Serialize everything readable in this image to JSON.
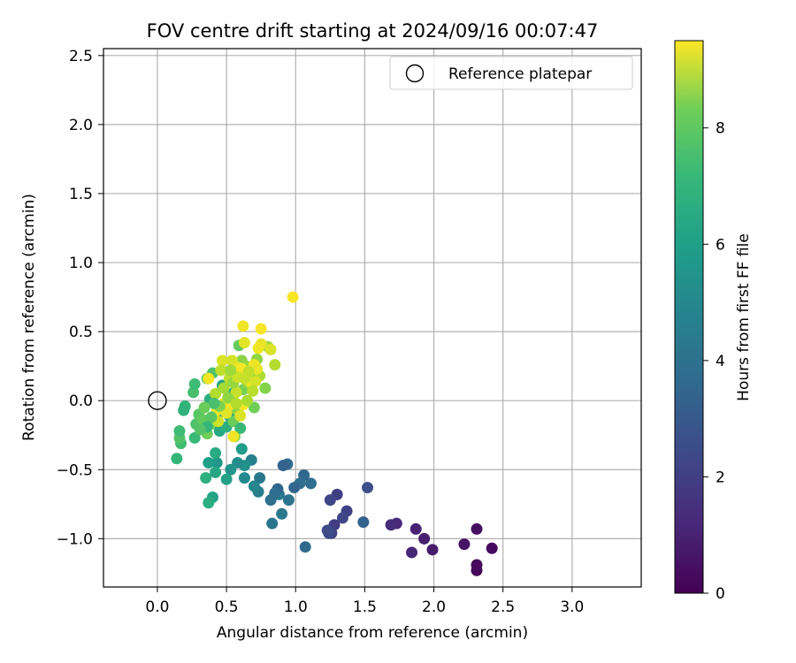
{
  "chart_data": {
    "type": "scatter",
    "title": "FOV centre drift starting at 2024/09/16 00:07:47",
    "xlabel": "Angular distance from reference (arcmin)",
    "ylabel": "Rotation from reference (arcmin)",
    "xlim": [
      -0.39,
      3.5
    ],
    "ylim": [
      -1.35,
      2.55
    ],
    "xticks": [
      0.0,
      0.5,
      1.0,
      1.5,
      2.0,
      2.5,
      3.0
    ],
    "yticks": [
      -1.0,
      -0.5,
      0.0,
      0.5,
      1.0,
      1.5,
      2.0,
      2.5
    ],
    "xtick_labels": [
      "0.0",
      "0.5",
      "1.0",
      "1.5",
      "2.0",
      "2.5",
      "3.0"
    ],
    "ytick_labels": [
      "−1.0",
      "−0.5",
      "0.0",
      "0.5",
      "1.0",
      "1.5",
      "2.0",
      "2.5"
    ],
    "grid": true,
    "legend": {
      "position": "top-right",
      "entries": [
        "Reference platepar"
      ]
    },
    "reference_point": {
      "x": 0.0,
      "y": 0.0
    },
    "colorbar": {
      "label": "Hours from first FF file",
      "range": [
        0,
        9.5
      ],
      "ticks": [
        0,
        2,
        4,
        6,
        8
      ],
      "tick_labels": [
        "0",
        "2",
        "4",
        "6",
        "8"
      ],
      "colormap": "viridis"
    },
    "points": [
      [
        2.31,
        -1.23,
        0.1
      ],
      [
        2.31,
        -1.19,
        0.2
      ],
      [
        2.42,
        -1.07,
        0.3
      ],
      [
        2.31,
        -0.93,
        0.4
      ],
      [
        2.22,
        -1.04,
        0.5
      ],
      [
        1.99,
        -1.08,
        0.7
      ],
      [
        1.93,
        -1.0,
        0.8
      ],
      [
        1.87,
        -0.93,
        0.9
      ],
      [
        1.84,
        -1.1,
        1.0
      ],
      [
        1.73,
        -0.89,
        1.1
      ],
      [
        1.69,
        -0.9,
        1.2
      ],
      [
        1.52,
        -0.63,
        2.3
      ],
      [
        1.49,
        -0.88,
        3.0
      ],
      [
        1.37,
        -0.8,
        1.9
      ],
      [
        1.34,
        -0.85,
        2.0
      ],
      [
        1.3,
        -0.68,
        1.8
      ],
      [
        1.28,
        -0.9,
        1.7
      ],
      [
        1.26,
        -0.96,
        1.9
      ],
      [
        1.24,
        -0.96,
        2.1
      ],
      [
        1.25,
        -0.72,
        2.0
      ],
      [
        1.23,
        -0.94,
        2.2
      ],
      [
        1.07,
        -1.06,
        3.3
      ],
      [
        1.11,
        -0.6,
        3.4
      ],
      [
        1.06,
        -0.54,
        3.2
      ],
      [
        1.03,
        -0.6,
        3.5
      ],
      [
        0.99,
        -0.63,
        3.1
      ],
      [
        0.95,
        -0.72,
        3.6
      ],
      [
        0.94,
        -0.46,
        3.3
      ],
      [
        0.91,
        -0.47,
        3.0
      ],
      [
        0.9,
        -0.82,
        3.8
      ],
      [
        0.88,
        -0.68,
        3.9
      ],
      [
        0.87,
        -0.64,
        3.1
      ],
      [
        0.85,
        -0.67,
        3.4
      ],
      [
        0.83,
        -0.89,
        3.7
      ],
      [
        0.82,
        -0.72,
        3.5
      ],
      [
        0.74,
        -0.56,
        3.8
      ],
      [
        0.73,
        -0.66,
        4.1
      ],
      [
        0.7,
        -0.62,
        4.4
      ],
      [
        0.68,
        -0.43,
        4.2
      ],
      [
        0.63,
        -0.56,
        4.5
      ],
      [
        0.63,
        -0.47,
        4.8
      ],
      [
        0.61,
        -0.35,
        5.2
      ],
      [
        0.58,
        -0.45,
        4.6
      ],
      [
        0.53,
        -0.5,
        4.9
      ],
      [
        0.5,
        -0.57,
        5.4
      ],
      [
        0.43,
        -0.45,
        5.0
      ],
      [
        0.42,
        -0.52,
        5.6
      ],
      [
        0.42,
        -0.38,
        5.8
      ],
      [
        0.4,
        -0.7,
        5.5
      ],
      [
        0.37,
        -0.74,
        5.9
      ],
      [
        0.35,
        -0.56,
        6.0
      ],
      [
        0.37,
        -0.45,
        5.3
      ],
      [
        0.14,
        -0.42,
        6.3
      ],
      [
        0.17,
        -0.31,
        6.6
      ],
      [
        0.16,
        -0.27,
        6.9
      ],
      [
        0.16,
        -0.22,
        6.5
      ],
      [
        0.27,
        -0.27,
        6.4
      ],
      [
        0.2,
        -0.04,
        6.2
      ],
      [
        0.19,
        -0.07,
        6.1
      ],
      [
        0.26,
        0.06,
        6.7
      ],
      [
        0.27,
        0.12,
        6.5
      ],
      [
        0.28,
        -0.17,
        6.8
      ],
      [
        0.3,
        -0.1,
        7.0
      ],
      [
        0.33,
        -0.14,
        7.2
      ],
      [
        0.36,
        -0.24,
        7.4
      ],
      [
        0.38,
        0.01,
        5.9
      ],
      [
        0.4,
        0.2,
        6.8
      ],
      [
        0.36,
        0.16,
        7.1
      ],
      [
        0.42,
        -0.17,
        7.5
      ],
      [
        0.45,
        -0.22,
        5.7
      ],
      [
        0.47,
        -0.08,
        5.1
      ],
      [
        0.47,
        0.11,
        5.6
      ],
      [
        0.5,
        -0.19,
        6.0
      ],
      [
        0.52,
        -0.11,
        5.2
      ],
      [
        0.54,
        0.05,
        5.9
      ],
      [
        0.55,
        -0.15,
        7.3
      ],
      [
        0.56,
        -0.26,
        7.6
      ],
      [
        0.58,
        -0.07,
        7.8
      ],
      [
        0.6,
        -0.2,
        6.4
      ],
      [
        0.59,
        0.4,
        7.2
      ],
      [
        0.61,
        0.29,
        7.8
      ],
      [
        0.62,
        0.08,
        7.5
      ],
      [
        0.64,
        0.25,
        8.0
      ],
      [
        0.66,
        0.13,
        8.2
      ],
      [
        0.68,
        0.2,
        7.7
      ],
      [
        0.7,
        -0.05,
        7.4
      ],
      [
        0.72,
        0.3,
        7.9
      ],
      [
        0.74,
        0.18,
        8.3
      ],
      [
        0.78,
        0.09,
        7.7
      ],
      [
        0.8,
        0.39,
        8.1
      ],
      [
        0.85,
        0.26,
        8.4
      ],
      [
        0.82,
        0.37,
        9.0
      ],
      [
        0.75,
        0.41,
        9.2
      ],
      [
        0.73,
        0.38,
        9.3
      ],
      [
        0.75,
        0.52,
        9.4
      ],
      [
        0.62,
        0.54,
        9.3
      ],
      [
        0.63,
        0.42,
        9.1
      ],
      [
        0.47,
        0.29,
        9.0
      ],
      [
        0.54,
        0.29,
        8.9
      ],
      [
        0.58,
        0.24,
        9.2
      ],
      [
        0.61,
        0.23,
        9.4
      ],
      [
        0.7,
        0.26,
        9.3
      ],
      [
        0.72,
        0.23,
        9.2
      ],
      [
        0.68,
        0.13,
        9.3
      ],
      [
        0.62,
        -0.03,
        9.4
      ],
      [
        0.52,
        -0.03,
        9.5
      ],
      [
        0.48,
        -0.02,
        9.3
      ],
      [
        0.5,
        -0.09,
        9.1
      ],
      [
        0.43,
        -0.07,
        9.2
      ],
      [
        0.44,
        -0.15,
        8.8
      ],
      [
        0.55,
        -0.26,
        9.3
      ],
      [
        0.6,
        -0.11,
        9.0
      ],
      [
        0.37,
        0.16,
        9.4
      ],
      [
        0.98,
        0.75,
        9.4
      ],
      [
        0.46,
        0.22,
        8.6
      ],
      [
        0.52,
        0.16,
        8.5
      ],
      [
        0.57,
        0.06,
        8.7
      ],
      [
        0.65,
        0.0,
        8.3
      ],
      [
        0.42,
        0.05,
        8.4
      ],
      [
        0.48,
        0.09,
        8.2
      ],
      [
        0.55,
        0.13,
        8.0
      ],
      [
        0.51,
        0.02,
        7.9
      ],
      [
        0.45,
        -0.04,
        7.6
      ],
      [
        0.58,
        0.17,
        8.8
      ],
      [
        0.66,
        0.21,
        8.6
      ],
      [
        0.71,
        0.14,
        8.9
      ],
      [
        0.69,
        0.07,
        8.5
      ],
      [
        0.39,
        -0.12,
        7.0
      ],
      [
        0.41,
        -0.02,
        6.7
      ],
      [
        0.36,
        -0.19,
        6.3
      ],
      [
        0.31,
        -0.21,
        6.9
      ],
      [
        0.34,
        -0.05,
        7.3
      ],
      [
        0.53,
        0.22,
        8.1
      ],
      [
        0.63,
        0.16,
        8.7
      ],
      [
        0.57,
        -0.02,
        8.4
      ]
    ]
  }
}
